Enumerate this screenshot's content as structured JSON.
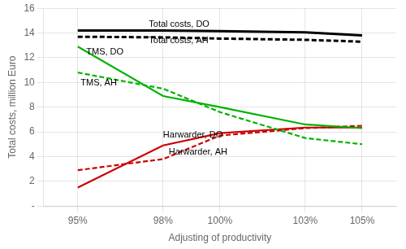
{
  "chart_data": {
    "type": "line",
    "x_label": "Adjusting of productivity",
    "y_label": "Total costs, million Euro",
    "x": [
      95,
      98,
      100,
      103,
      105
    ],
    "xlim": [
      93.8,
      106.2
    ],
    "xticks": [
      {
        "value": 95,
        "label": "95%"
      },
      {
        "value": 98,
        "label": "98%"
      },
      {
        "value": 100,
        "label": "100%"
      },
      {
        "value": 103,
        "label": "103%"
      },
      {
        "value": 105,
        "label": "105%"
      }
    ],
    "ylim": [
      0,
      16
    ],
    "yticks": [
      {
        "value": 0,
        "label": "-"
      },
      2,
      4,
      6,
      8,
      10,
      12,
      14,
      16
    ],
    "grid": true,
    "series": [
      {
        "color": "#000000",
        "line_style": "solid",
        "values": [
          14.2,
          14.2,
          14.15,
          14.05,
          13.8
        ]
      },
      {
        "color": "#000000",
        "line_style": "dashed",
        "values": [
          13.7,
          13.65,
          13.55,
          13.45,
          13.3
        ]
      },
      {
        "color": "#00b300",
        "line_style": "solid",
        "values": [
          12.9,
          8.9,
          8.0,
          6.6,
          6.3
        ]
      },
      {
        "color": "#00b300",
        "line_style": "dashed",
        "values": [
          10.8,
          9.5,
          7.6,
          5.5,
          5.0
        ]
      },
      {
        "color": "#cc0000",
        "line_style": "solid",
        "values": [
          1.5,
          4.9,
          5.9,
          6.35,
          6.35
        ]
      },
      {
        "color": "#cc0000",
        "line_style": "dashed",
        "values": [
          2.9,
          3.8,
          5.7,
          6.3,
          6.5
        ]
      }
    ],
    "annotations": [
      {
        "text": "Total costs, DO",
        "x": 97.5,
        "y": 14.35
      },
      {
        "text": "Total costs, AH",
        "x": 97.5,
        "y": 13.05
      },
      {
        "text": "TMS, DO",
        "x": 95.3,
        "y": 12.1
      },
      {
        "text": "TMS, AH",
        "x": 95.1,
        "y": 9.6
      },
      {
        "text": "Harwarder, DO",
        "x": 98.0,
        "y": 5.35
      },
      {
        "text": "Harwarder, AH",
        "x": 98.2,
        "y": 4.0
      }
    ]
  }
}
